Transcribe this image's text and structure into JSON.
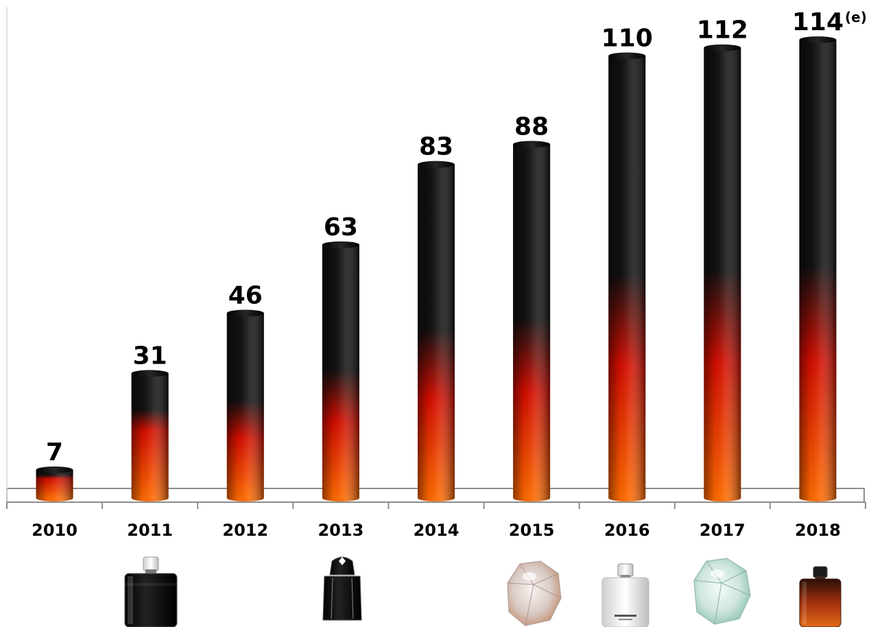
{
  "chart_data": {
    "type": "bar",
    "title": "",
    "xlabel": "",
    "ylabel": "",
    "ylim": [
      0,
      114
    ],
    "grid": false,
    "legend": "none",
    "categories": [
      "2010",
      "2011",
      "2012",
      "2013",
      "2014",
      "2015",
      "2016",
      "2017",
      "2018"
    ],
    "values": [
      7,
      31,
      46,
      63,
      83,
      88,
      110,
      112,
      114
    ],
    "value_labels": [
      "7",
      "31",
      "46",
      "63",
      "83",
      "88",
      "110",
      "112",
      "114"
    ],
    "annotations": [
      {
        "category": "2018",
        "text": "(e)"
      }
    ],
    "product_images": [
      {
        "category": "2011",
        "icon": "legend-bottle-black-icon"
      },
      {
        "category": "2013",
        "icon": "emblem-bottle-black-icon"
      },
      {
        "category": "2015",
        "icon": "lady-emblem-rose-bottle-icon"
      },
      {
        "category": "2016",
        "icon": "legend-spirit-white-bottle-icon"
      },
      {
        "category": "2017",
        "icon": "lady-emblem-aqua-bottle-icon"
      },
      {
        "category": "2018",
        "icon": "legend-night-amber-bottle-icon"
      }
    ],
    "colors": {
      "bar_top": "#111111",
      "bar_mid": "#d40d00",
      "bar_bottom": "#ff6a00",
      "axis": "#8c8c8c",
      "baseline_fill": "#ffffff"
    }
  }
}
